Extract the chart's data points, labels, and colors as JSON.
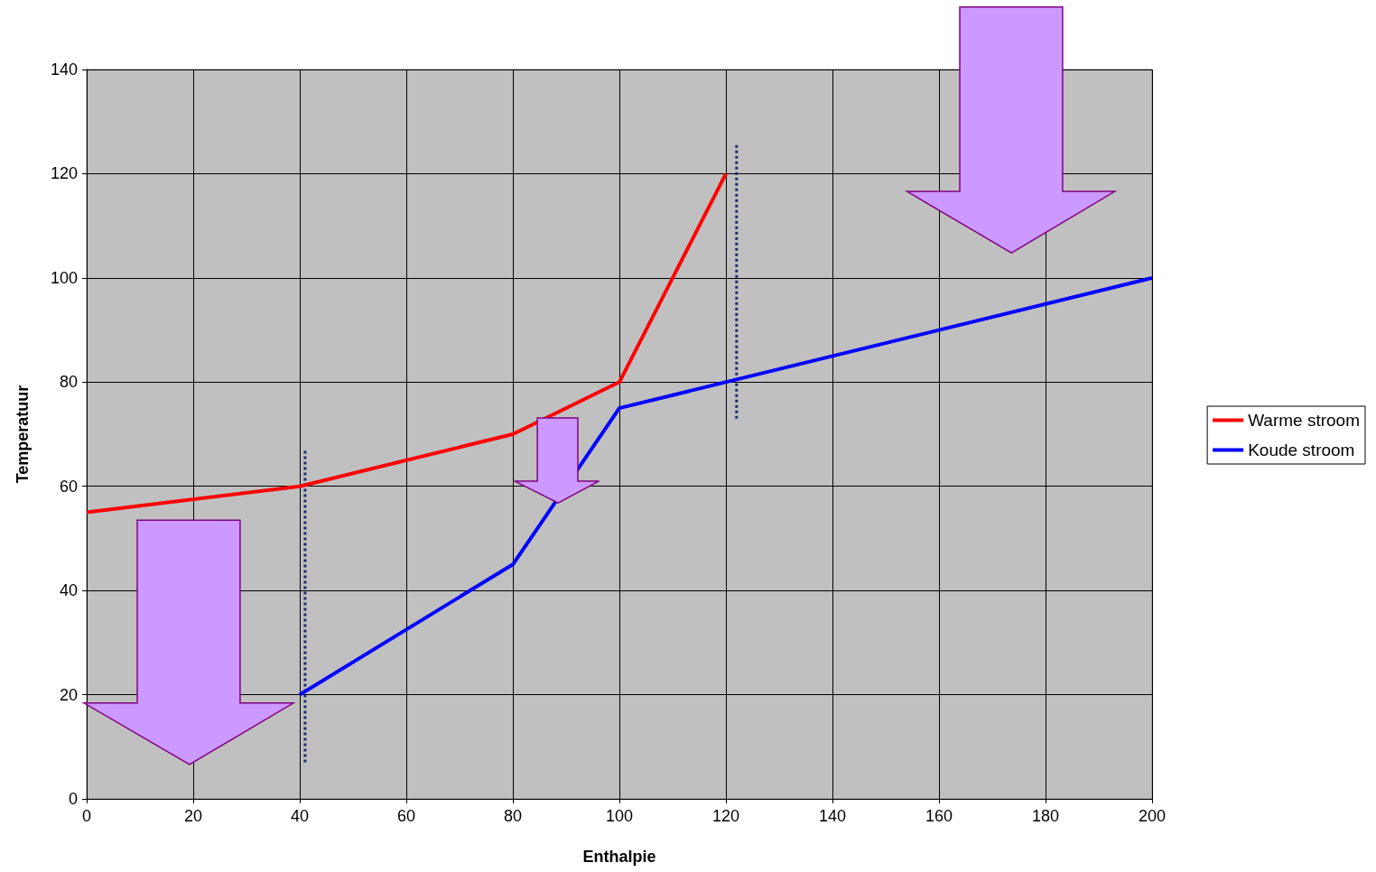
{
  "chart_data": {
    "type": "line",
    "xlabel": "Enthalpie",
    "ylabel": "Temperatuur",
    "xlim": [
      0,
      200
    ],
    "xticks": [
      0,
      20,
      40,
      60,
      80,
      100,
      120,
      140,
      160,
      180,
      200
    ],
    "ylim": [
      0,
      140
    ],
    "yticks": [
      0,
      20,
      40,
      60,
      80,
      100,
      120,
      140
    ],
    "grid": true,
    "legend": "right",
    "marker": "none",
    "series": [
      {
        "name": "Warme stroom",
        "color": "#ff0000",
        "x": [
          0,
          40,
          80,
          100,
          120
        ],
        "values": [
          55,
          60,
          70,
          80,
          120
        ]
      },
      {
        "name": "Koude stroom",
        "color": "#0000ff",
        "x": [
          40,
          80,
          100,
          200
        ],
        "values": [
          20,
          45,
          75,
          100
        ]
      },
      {
        "color": "#1f2a6b",
        "line_style": "dotted",
        "x": [
          41,
          41
        ],
        "values": [
          7,
          67
        ]
      },
      {
        "color": "#1f2a6b",
        "line_style": "dotted",
        "x": [
          122,
          122
        ],
        "values": [
          73,
          126
        ]
      }
    ]
  }
}
